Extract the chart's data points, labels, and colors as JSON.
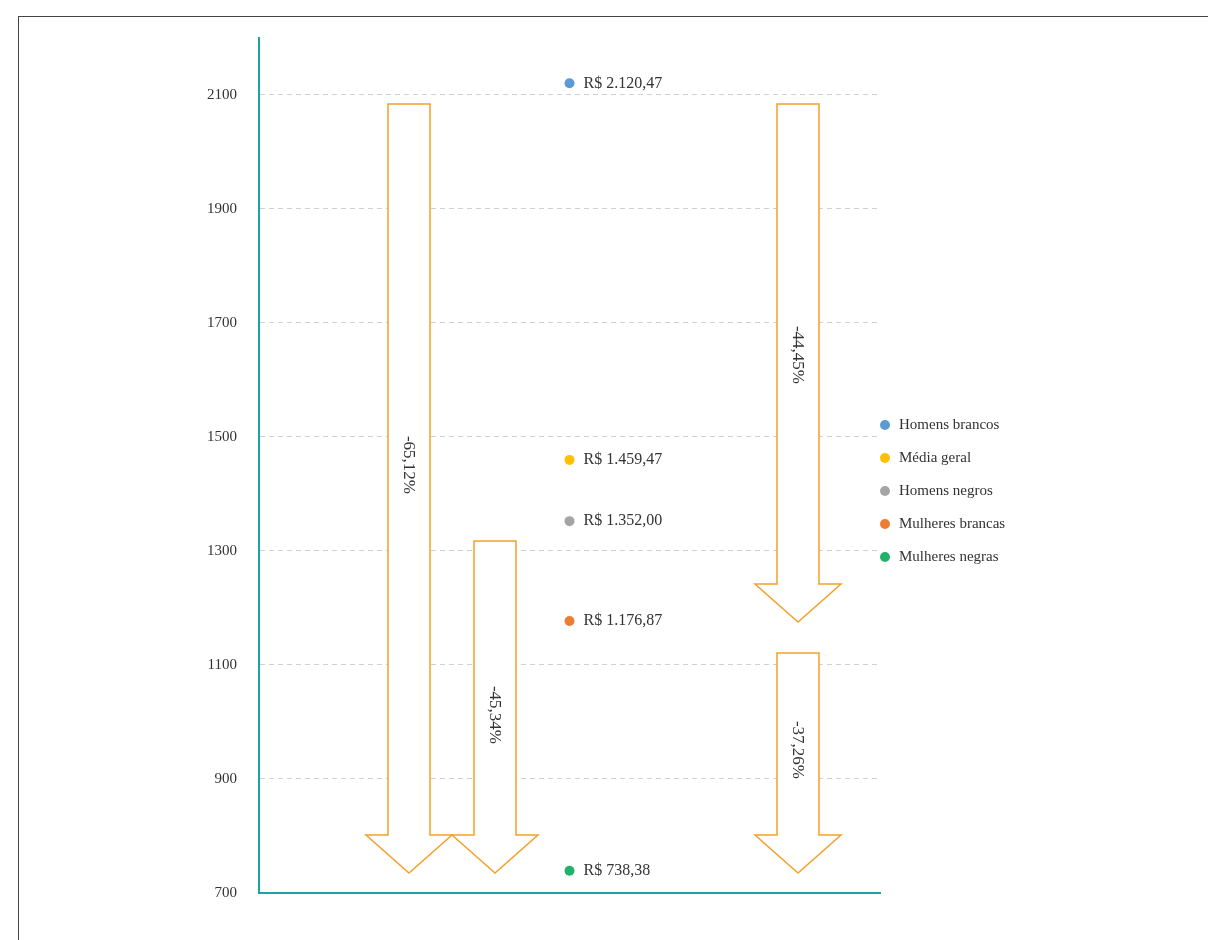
{
  "chart_data": {
    "type": "scatter",
    "categories": [
      null
    ],
    "series": [
      {
        "name": "Homens brancos",
        "color": "#5b9bd5",
        "values": [
          2120.47
        ],
        "value_labels": [
          "R$ 2.120,47"
        ]
      },
      {
        "name": "Média geral",
        "color": "#ffc000",
        "values": [
          1459.47
        ],
        "value_labels": [
          "R$ 1.459,47"
        ]
      },
      {
        "name": "Homens negros",
        "color": "#a5a5a5",
        "values": [
          1352.0
        ],
        "value_labels": [
          "R$ 1.352,00"
        ]
      },
      {
        "name": "Mulheres brancas",
        "color": "#ed7d31",
        "values": [
          1176.87
        ],
        "value_labels": [
          "R$ 1.176,87"
        ]
      },
      {
        "name": "Mulheres negras",
        "color": "#21b36b",
        "values": [
          738.38
        ],
        "value_labels": [
          "R$ 738,38"
        ]
      }
    ],
    "ylim": [
      700,
      2200
    ],
    "yticks": [
      700,
      900,
      1100,
      1300,
      1500,
      1700,
      1900,
      2100
    ],
    "grid": "y",
    "legend": "right",
    "marker": "circle",
    "annotations": [
      "-65,12%",
      "-45,34%",
      "-44,45%",
      "-37,26%"
    ]
  }
}
